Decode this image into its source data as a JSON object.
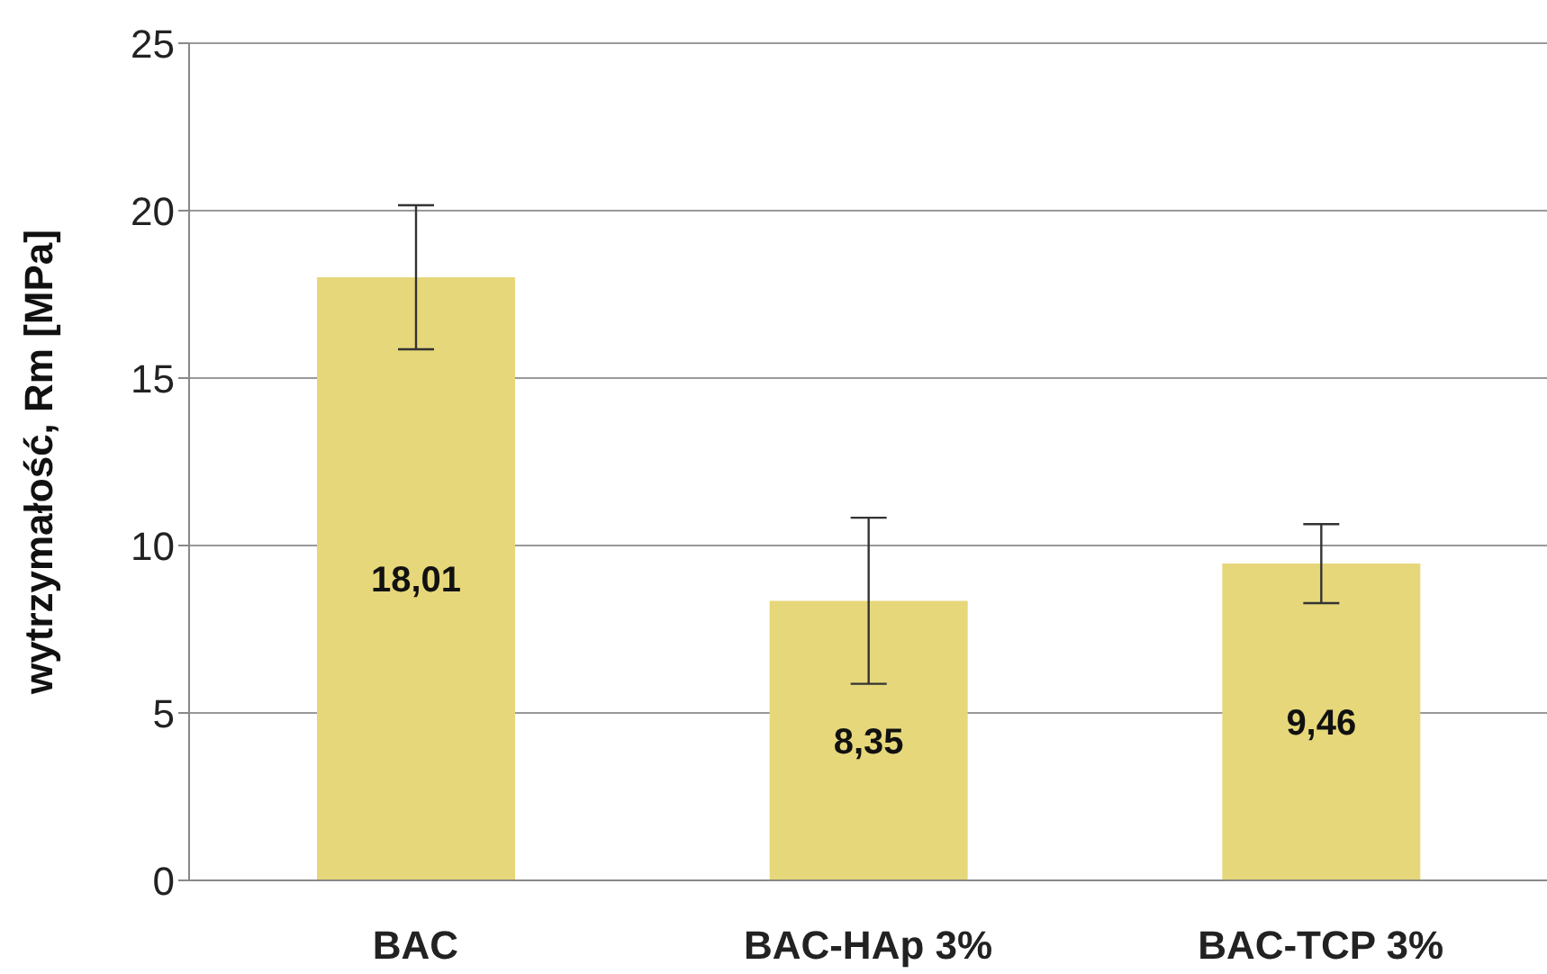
{
  "chart_data": {
    "type": "bar",
    "ylabel": "wytrzymałość, Rm [MPa]",
    "categories": [
      "BAC",
      "BAC-HAp 3%",
      "BAC-TCP 3%"
    ],
    "values": [
      18.01,
      8.35,
      9.46
    ],
    "errors": [
      2.15,
      2.48,
      1.18
    ],
    "color": "#e6d77a",
    "value_labels": [
      "18,01",
      "8,35",
      "9,46"
    ],
    "ylim": [
      0,
      25
    ],
    "yticks": [
      0,
      5,
      10,
      15,
      20,
      25
    ],
    "grid": "y"
  }
}
